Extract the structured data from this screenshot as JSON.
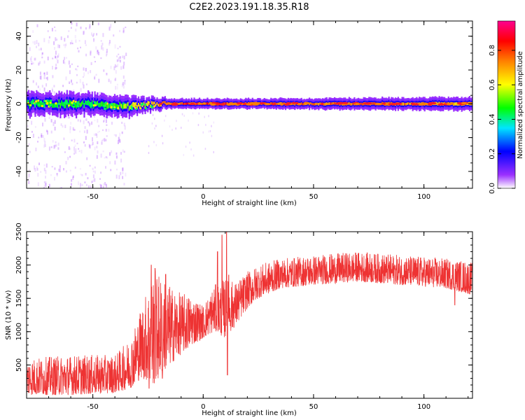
{
  "title": "C2E2.2023.191.18.35.R18",
  "chart_data": [
    {
      "type": "heatmap",
      "xlabel": "Height of straight line (km)",
      "ylabel": "Frequency (Hz)",
      "xlim": [
        -80,
        122
      ],
      "ylim": [
        -50,
        49
      ],
      "xticks": [
        -50,
        0,
        50,
        100
      ],
      "yticks": [
        -40,
        -20,
        0,
        20,
        40
      ],
      "colorbar": {
        "label": "Normalized spectral amplitude",
        "range": [
          0,
          0.97
        ],
        "ticks": [
          "0.0",
          "0.2",
          "0.4",
          "0.6",
          "0.8"
        ],
        "colors": [
          "#ffffff",
          "#9b30ff",
          "#0000ff",
          "#00e5ff",
          "#00ff00",
          "#ffff00",
          "#ff8000",
          "#ff0000",
          "#ff0090"
        ]
      },
      "band": {
        "center_hz": [
          {
            "x": -80,
            "y": 0
          },
          {
            "x": -60,
            "y": 0
          },
          {
            "x": -45,
            "y": -1
          },
          {
            "x": -30,
            "y": -1.5
          },
          {
            "x": -20,
            "y": 0
          },
          {
            "x": 0,
            "y": 0
          },
          {
            "x": 50,
            "y": 0
          },
          {
            "x": 122,
            "y": 0
          }
        ],
        "half_width_hz": [
          {
            "x": -80,
            "y": 7
          },
          {
            "x": -35,
            "y": 6
          },
          {
            "x": -15,
            "y": 3
          },
          {
            "x": 20,
            "y": 3
          },
          {
            "x": 122,
            "y": 4
          }
        ],
        "peak_amplitude": [
          {
            "x": -80,
            "y": 0.45
          },
          {
            "x": -40,
            "y": 0.5
          },
          {
            "x": -25,
            "y": 0.7
          },
          {
            "x": -10,
            "y": 0.85
          },
          {
            "x": 0,
            "y": 0.9
          },
          {
            "x": 30,
            "y": 0.8
          },
          {
            "x": 80,
            "y": 0.8
          },
          {
            "x": 122,
            "y": 0.7
          }
        ],
        "scatter_region_x": [
          -80,
          -35
        ]
      }
    },
    {
      "type": "line",
      "xlabel": "Height of straight line (km)",
      "ylabel": "SNR (10 * v/v)",
      "xlim": [
        -80,
        122
      ],
      "ylim": [
        0,
        2500
      ],
      "xticks": [
        -50,
        0,
        50,
        100
      ],
      "yticks": [
        500,
        1000,
        1500,
        2000,
        2500
      ],
      "color": "#ee3333",
      "envelope": [
        {
          "x": -80,
          "min": 50,
          "max": 600
        },
        {
          "x": -60,
          "min": 50,
          "max": 650
        },
        {
          "x": -40,
          "min": 80,
          "max": 650
        },
        {
          "x": -33,
          "min": 150,
          "max": 900
        },
        {
          "x": -28,
          "min": 300,
          "max": 1400
        },
        {
          "x": -22,
          "min": 200,
          "max": 1950
        },
        {
          "x": -18,
          "min": 400,
          "max": 1800
        },
        {
          "x": -12,
          "min": 600,
          "max": 1600
        },
        {
          "x": -5,
          "min": 800,
          "max": 1550
        },
        {
          "x": 0,
          "min": 900,
          "max": 1400
        },
        {
          "x": 5,
          "min": 1000,
          "max": 1700
        },
        {
          "x": 10,
          "min": 900,
          "max": 1800
        },
        {
          "x": 15,
          "min": 1100,
          "max": 1750
        },
        {
          "x": 20,
          "min": 1350,
          "max": 1900
        },
        {
          "x": 25,
          "min": 1500,
          "max": 2000
        },
        {
          "x": 35,
          "min": 1650,
          "max": 2100
        },
        {
          "x": 50,
          "min": 1700,
          "max": 2150
        },
        {
          "x": 70,
          "min": 1750,
          "max": 2200
        },
        {
          "x": 90,
          "min": 1700,
          "max": 2150
        },
        {
          "x": 110,
          "min": 1650,
          "max": 2100
        },
        {
          "x": 122,
          "min": 1550,
          "max": 2050
        }
      ],
      "spikes": [
        {
          "x": -23.5,
          "y": 2000
        },
        {
          "x": -21.8,
          "y": 1950
        },
        {
          "x": -17,
          "y": 1860
        },
        {
          "x": 6.5,
          "y": 2200
        },
        {
          "x": 8.5,
          "y": 2450
        },
        {
          "x": 10.6,
          "y": 2500
        },
        {
          "x": 11.6,
          "y": 1850
        },
        {
          "x": 114,
          "y": 1400
        }
      ],
      "dips": [
        {
          "x": -24.5,
          "y": 150
        },
        {
          "x": -18.5,
          "y": 300
        },
        {
          "x": 11,
          "y": 350
        },
        {
          "x": 114,
          "y": 1400
        }
      ]
    }
  ]
}
